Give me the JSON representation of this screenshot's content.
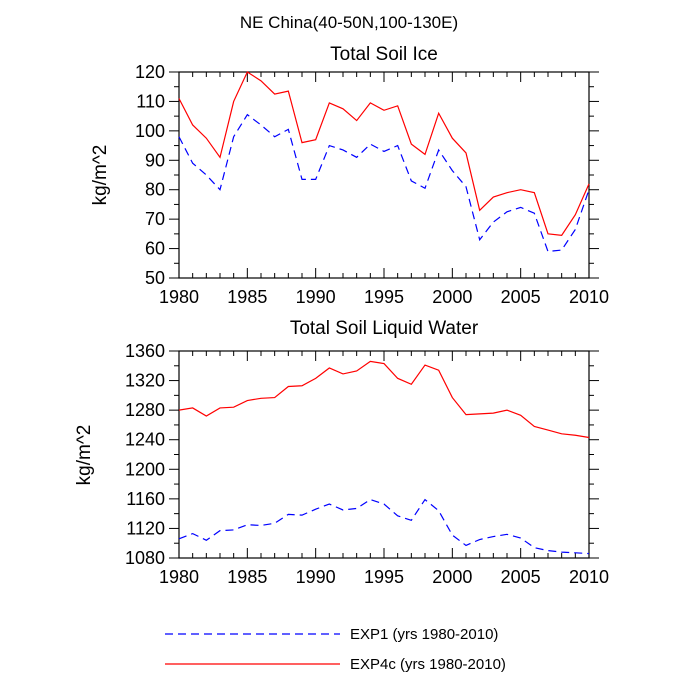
{
  "figure": {
    "suptitle": "NE China(40-50N,100-130E)"
  },
  "series_styles": {
    "EXP1 (yrs 1980-2010)": {
      "color": "#0000ff",
      "dash": "8,5"
    },
    "EXP4c (yrs 1980-2010)": {
      "color": "#ff0000",
      "dash": ""
    }
  },
  "chart_data": [
    {
      "type": "line",
      "title": "Total Soil Ice",
      "xlabel": "",
      "ylabel": "kg/m^2",
      "xlim": [
        1980,
        2010
      ],
      "ylim": [
        50,
        120
      ],
      "xticks": [
        1980,
        1985,
        1990,
        1995,
        2000,
        2005,
        2010
      ],
      "yticks": [
        50,
        60,
        70,
        80,
        90,
        100,
        110,
        120
      ],
      "x": [
        1980,
        1981,
        1982,
        1983,
        1984,
        1985,
        1986,
        1987,
        1988,
        1989,
        1990,
        1991,
        1992,
        1993,
        1994,
        1995,
        1996,
        1997,
        1998,
        1999,
        2000,
        2001,
        2002,
        2003,
        2004,
        2005,
        2006,
        2007,
        2008,
        2009,
        2010
      ],
      "series": [
        {
          "name": "EXP4c (yrs 1980-2010)",
          "values": [
            111,
            102,
            97.5,
            91,
            110,
            120,
            117,
            112.5,
            113.5,
            96,
            97,
            109.5,
            107.5,
            103.5,
            109.5,
            107,
            108.5,
            95.5,
            92,
            106,
            97.5,
            92.5,
            73,
            77.5,
            79,
            80,
            79,
            65,
            64.5,
            71.5,
            82
          ]
        },
        {
          "name": "EXP1 (yrs 1980-2010)",
          "values": [
            98,
            89,
            85,
            80,
            98,
            105.5,
            102,
            98,
            100.5,
            83.5,
            83.5,
            95,
            93.5,
            91,
            95.5,
            93,
            95,
            83,
            80.5,
            93.5,
            86.5,
            81,
            63,
            69,
            72.5,
            74,
            72,
            59,
            59.5,
            66.5,
            80
          ]
        }
      ],
      "grid": false,
      "legend": "bottom"
    },
    {
      "type": "line",
      "title": "Total Soil Liquid Water",
      "xlabel": "",
      "ylabel": "kg/m^2",
      "xlim": [
        1980,
        2010
      ],
      "ylim": [
        1080,
        1360
      ],
      "xticks": [
        1980,
        1985,
        1990,
        1995,
        2000,
        2005,
        2010
      ],
      "yticks": [
        1080,
        1120,
        1160,
        1200,
        1240,
        1280,
        1320,
        1360
      ],
      "x": [
        1980,
        1981,
        1982,
        1983,
        1984,
        1985,
        1986,
        1987,
        1988,
        1989,
        1990,
        1991,
        1992,
        1993,
        1994,
        1995,
        1996,
        1997,
        1998,
        1999,
        2000,
        2001,
        2002,
        2003,
        2004,
        2005,
        2006,
        2007,
        2008,
        2009,
        2010
      ],
      "series": [
        {
          "name": "EXP4c (yrs 1980-2010)",
          "values": [
            1280,
            1283,
            1272,
            1283,
            1284,
            1293,
            1296,
            1297,
            1312,
            1313,
            1323,
            1337,
            1329,
            1333,
            1346,
            1343,
            1323,
            1315,
            1341,
            1334,
            1297,
            1274,
            1275,
            1276,
            1280,
            1273,
            1258,
            1253,
            1248,
            1246,
            1243
          ]
        },
        {
          "name": "EXP1 (yrs 1980-2010)",
          "values": [
            1106,
            1113,
            1104,
            1117,
            1118,
            1125,
            1124,
            1127,
            1139,
            1138,
            1146,
            1153,
            1145,
            1147,
            1159,
            1153,
            1137,
            1131,
            1159,
            1144,
            1111,
            1097,
            1105,
            1109,
            1112,
            1107,
            1094,
            1090,
            1088,
            1087,
            1086
          ]
        }
      ],
      "grid": false,
      "legend": "bottom"
    }
  ],
  "legend": {
    "items": [
      {
        "series": "EXP1 (yrs 1980-2010)",
        "label": "EXP1 (yrs 1980-2010)"
      },
      {
        "series": "EXP4c (yrs 1980-2010)",
        "label": "EXP4c (yrs 1980-2010)"
      }
    ]
  }
}
